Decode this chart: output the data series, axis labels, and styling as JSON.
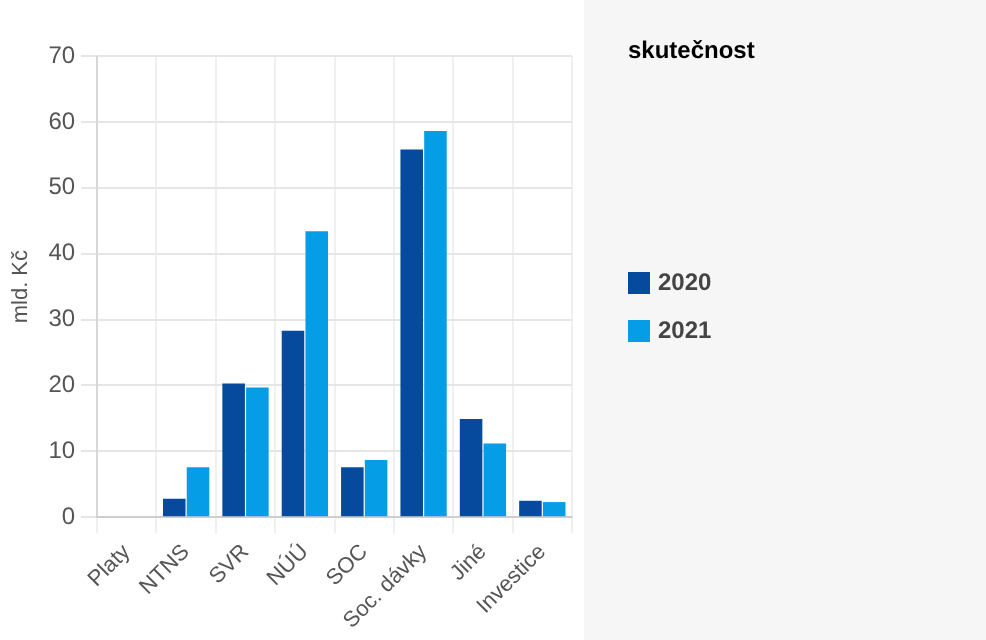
{
  "chart_data": {
    "type": "bar",
    "ylabel": "mld. Kč",
    "legend_title": "skutečnost",
    "legend": "right",
    "categories": [
      "Platy",
      "NTNS",
      "SVR",
      "NÚÚ",
      "SOC",
      "Soc. dávky",
      "Jiné",
      "Investice"
    ],
    "series": [
      {
        "name": "2020",
        "color": "#054a9c",
        "values": [
          0,
          2.8,
          20.3,
          28.3,
          7.6,
          55.8,
          14.9,
          2.5
        ]
      },
      {
        "name": "2021",
        "color": "#059ee6",
        "values": [
          0,
          7.6,
          19.7,
          43.4,
          8.7,
          58.6,
          11.2,
          2.3
        ]
      }
    ],
    "ylim": [
      0,
      70
    ],
    "yticks": [
      0,
      10,
      20,
      30,
      40,
      50,
      60,
      70
    ],
    "grid": true
  }
}
